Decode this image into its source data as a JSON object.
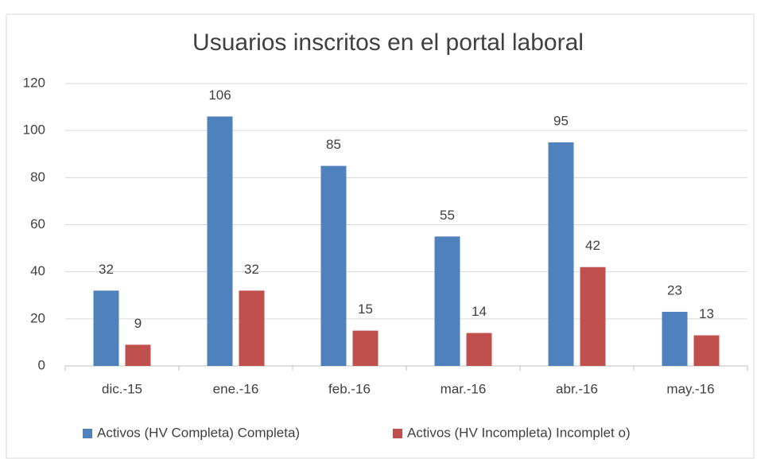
{
  "chart_data": {
    "type": "bar",
    "title": "Usuarios inscritos en el portal laboral",
    "categories": [
      "dic.-15",
      "ene.-16",
      "feb.-16",
      "mar.-16",
      "abr.-16",
      "may.-16"
    ],
    "series": [
      {
        "name": "Activos (HV Completa) Completa)",
        "color": "#4f81bd",
        "values": [
          32,
          106,
          85,
          55,
          95,
          23
        ]
      },
      {
        "name": "Activos (HV Incompleta) Incomplet o)",
        "color": "#c0504d",
        "values": [
          9,
          32,
          15,
          14,
          42,
          13
        ]
      }
    ],
    "ylim": [
      0,
      120
    ],
    "yticks": [
      0,
      20,
      40,
      60,
      80,
      100,
      120
    ],
    "grid": true,
    "legend": "bottom"
  }
}
